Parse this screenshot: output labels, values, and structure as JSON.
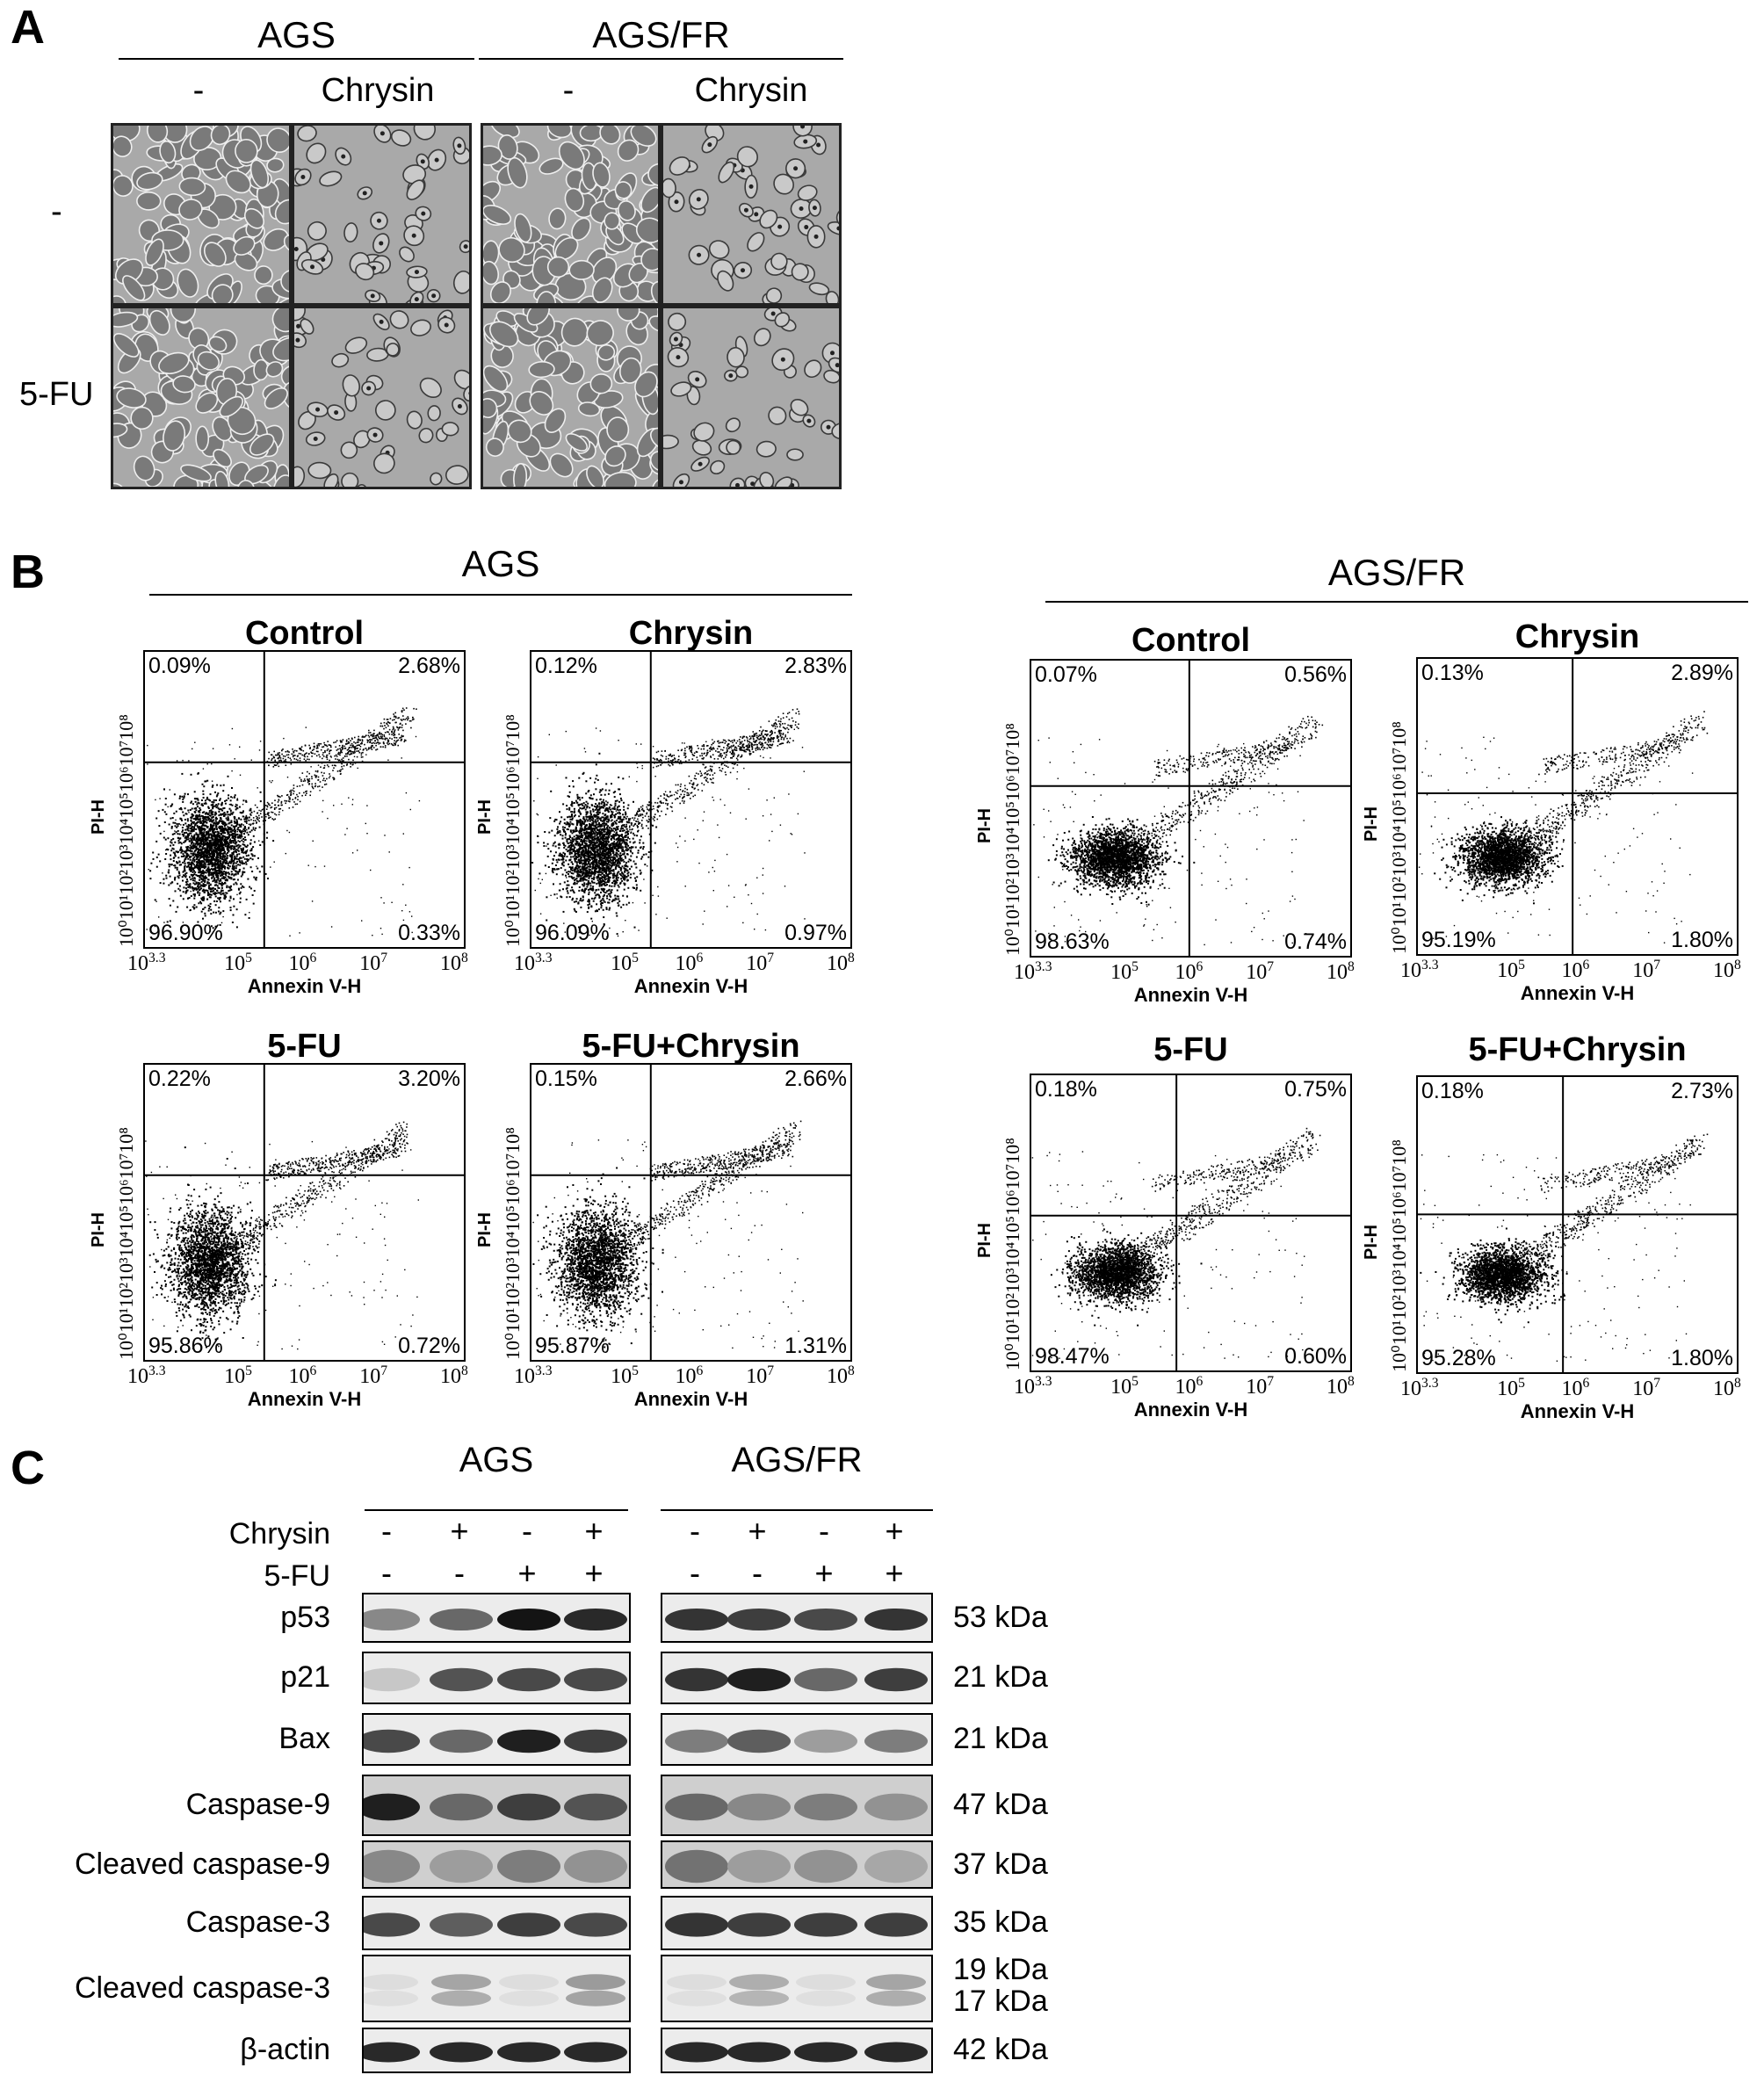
{
  "panel_a": {
    "letter": "A",
    "groups": [
      "AGS",
      "AGS/FR"
    ],
    "col_labels": [
      "-",
      "Chrysin",
      "-",
      "Chrysin"
    ],
    "row_labels": [
      "-",
      "5-FU"
    ]
  },
  "panel_b": {
    "letter": "B",
    "groups": [
      "AGS",
      "AGS/FR"
    ],
    "ylabel": "PI-H",
    "xlabel": "Annexin V-H",
    "plots": [
      {
        "title": "Control",
        "ul": "0.09%",
        "ur": "2.68%",
        "ll": "96.90%",
        "lr": "0.33%"
      },
      {
        "title": "Chrysin",
        "ul": "0.12%",
        "ur": "2.83%",
        "ll": "96.09%",
        "lr": "0.97%"
      },
      {
        "title": "5-FU",
        "ul": "0.22%",
        "ur": "3.20%",
        "ll": "95.86%",
        "lr": "0.72%"
      },
      {
        "title": "5-FU+Chrysin",
        "ul": "0.15%",
        "ur": "2.66%",
        "ll": "95.87%",
        "lr": "1.31%"
      },
      {
        "title": "Control",
        "ul": "0.07%",
        "ur": "0.56%",
        "ll": "98.63%",
        "lr": "0.74%"
      },
      {
        "title": "Chrysin",
        "ul": "0.13%",
        "ur": "2.89%",
        "ll": "95.19%",
        "lr": "1.80%"
      },
      {
        "title": "5-FU",
        "ul": "0.18%",
        "ur": "0.75%",
        "ll": "98.47%",
        "lr": "0.60%"
      },
      {
        "title": "5-FU+Chrysin",
        "ul": "0.18%",
        "ur": "2.73%",
        "ll": "95.28%",
        "lr": "1.80%"
      }
    ]
  },
  "panel_c": {
    "letter": "C",
    "groups": [
      "AGS",
      "AGS/FR"
    ],
    "treatment_labels": [
      "Chrysin",
      "5-FU"
    ],
    "chrysin": [
      "-",
      "+",
      "-",
      "+",
      "-",
      "+",
      "-",
      "+"
    ],
    "fu": [
      "-",
      "-",
      "+",
      "+",
      "-",
      "-",
      "+",
      "+"
    ],
    "rows": [
      {
        "label": "p53",
        "kda": "53 kDa"
      },
      {
        "label": "p21",
        "kda": "21 kDa"
      },
      {
        "label": "Bax",
        "kda": "21 kDa"
      },
      {
        "label": "Caspase-9",
        "kda": "47 kDa"
      },
      {
        "label": "Cleaved caspase-9",
        "kda": "37 kDa"
      },
      {
        "label": "Caspase-3",
        "kda": "35 kDa"
      },
      {
        "label": "Cleaved caspase-3",
        "kda": "19 kDa",
        "kda2": "17 kDa"
      },
      {
        "label": "β-actin",
        "kda": "42 kDa"
      }
    ]
  }
}
